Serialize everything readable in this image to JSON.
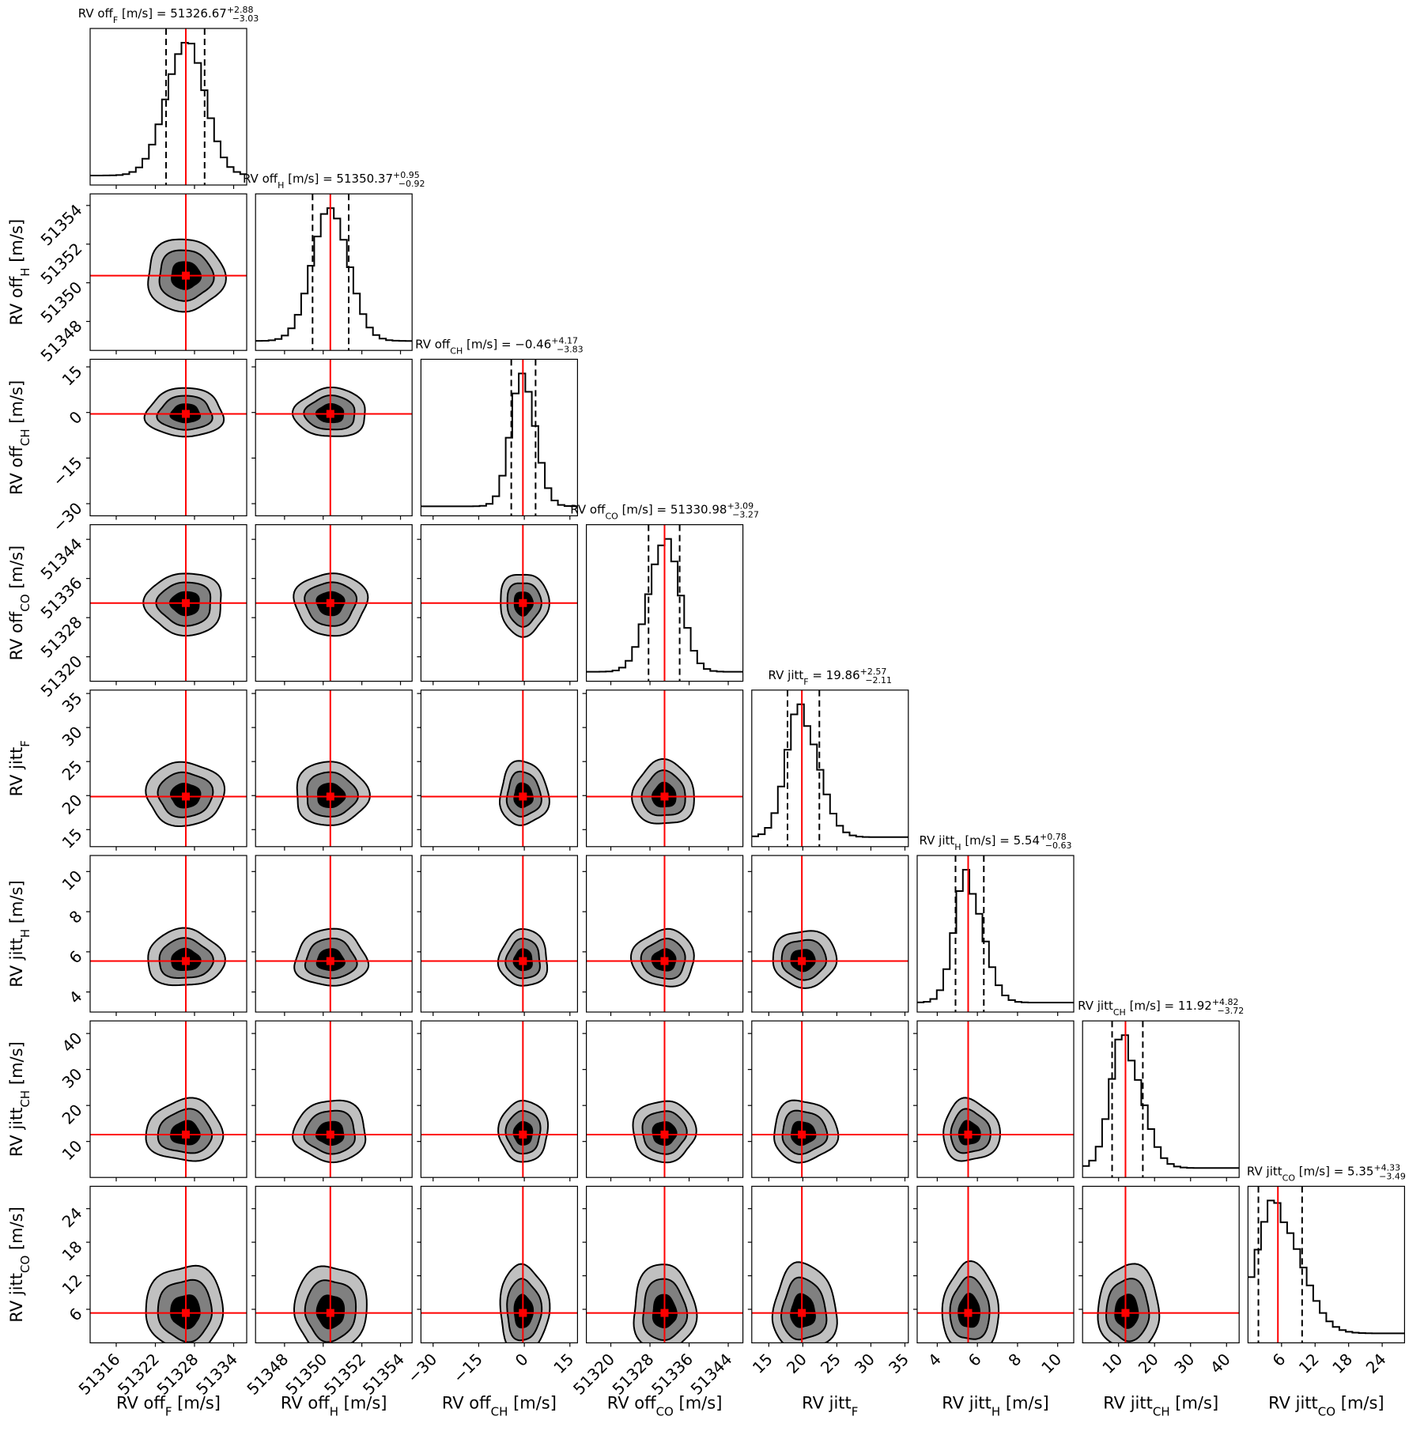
{
  "chart_data": {
    "type": "corner",
    "description_units": "posterior samples of RV offsets and jitters",
    "contour_colors": [
      "#c0c0c0",
      "#808080",
      "#000000"
    ],
    "truth_color": "#ff0000",
    "params": [
      {
        "key": "off_F",
        "label": {
          "pre": "RV off",
          "sub": "F",
          "post": " [m/s]"
        },
        "title": {
          "prefix": "RV off",
          "sub": "F",
          "mid": " [m/s] = ",
          "value": "51326.67",
          "upper": "+2.88",
          "lower": "−3.03"
        },
        "median": 51326.67,
        "err_plus": 2.88,
        "err_minus": 3.03,
        "range": [
          51312,
          51336
        ],
        "ticks": [
          51316,
          51322,
          51328,
          51334
        ],
        "tick_labels": [
          "51316",
          "51322",
          "51328",
          "51334"
        ]
      },
      {
        "key": "off_H",
        "label": {
          "pre": "RV off",
          "sub": "H",
          "post": " [m/s]"
        },
        "title": {
          "prefix": "RV off",
          "sub": "H",
          "mid": " [m/s] = ",
          "value": "51350.37",
          "upper": "+0.95",
          "lower": "−0.92"
        },
        "median": 51350.37,
        "err_plus": 0.95,
        "err_minus": 0.92,
        "range": [
          51346.5,
          51354.6
        ],
        "ticks": [
          51348,
          51350,
          51352,
          51354
        ],
        "tick_labels": [
          "51348",
          "51350",
          "51352",
          "51354"
        ]
      },
      {
        "key": "off_CH",
        "label": {
          "pre": "RV off",
          "sub": "CH",
          "post": " [m/s]"
        },
        "title": {
          "prefix": "RV off",
          "sub": "CH",
          "mid": " [m/s] = ",
          "value": "−0.46",
          "upper": "+4.17",
          "lower": "−3.83"
        },
        "median": -0.46,
        "err_plus": 4.17,
        "err_minus": 3.83,
        "range": [
          -34,
          17.5
        ],
        "ticks": [
          -30,
          -15,
          0,
          15
        ],
        "tick_labels": [
          "−30",
          "−15",
          "0",
          "15"
        ]
      },
      {
        "key": "off_CO",
        "label": {
          "pre": "RV off",
          "sub": "CO",
          "post": " [m/s]"
        },
        "title": {
          "prefix": "RV off",
          "sub": "CO",
          "mid": " [m/s] = ",
          "value": "51330.98",
          "upper": "+3.09",
          "lower": "−3.27"
        },
        "median": 51330.98,
        "err_plus": 3.09,
        "err_minus": 3.27,
        "range": [
          51315,
          51347
        ],
        "ticks": [
          51320,
          51328,
          51336,
          51344
        ],
        "tick_labels": [
          "51320",
          "51328",
          "51336",
          "51344"
        ]
      },
      {
        "key": "jitt_F",
        "label": {
          "pre": "RV jitt",
          "sub": "F",
          "post": ""
        },
        "title": {
          "prefix": "RV jitt",
          "sub": "F",
          "mid": " = ",
          "value": "19.86",
          "upper": "+2.57",
          "lower": "−2.11"
        },
        "median": 19.86,
        "err_plus": 2.57,
        "err_minus": 2.11,
        "range": [
          12.5,
          35.5
        ],
        "ticks": [
          15,
          20,
          25,
          30,
          35
        ],
        "tick_labels": [
          "15",
          "20",
          "25",
          "30",
          "35"
        ]
      },
      {
        "key": "jitt_H",
        "label": {
          "pre": "RV jitt",
          "sub": "H",
          "post": " [m/s]"
        },
        "title": {
          "prefix": "RV jitt",
          "sub": "H",
          "mid": " [m/s] = ",
          "value": "5.54",
          "upper": "+0.78",
          "lower": "−0.63"
        },
        "median": 5.54,
        "err_plus": 0.78,
        "err_minus": 0.63,
        "range": [
          3.0,
          10.8
        ],
        "ticks": [
          4,
          6,
          8,
          10
        ],
        "tick_labels": [
          "4",
          "6",
          "8",
          "10"
        ]
      },
      {
        "key": "jitt_CH",
        "label": {
          "pre": "RV jitt",
          "sub": "CH",
          "post": " [m/s]"
        },
        "title": {
          "prefix": "RV jitt",
          "sub": "CH",
          "mid": " [m/s] = ",
          "value": "11.92",
          "upper": "+4.82",
          "lower": "−3.72"
        },
        "median": 11.92,
        "err_plus": 4.82,
        "err_minus": 3.72,
        "range": [
          0,
          43.5
        ],
        "ticks": [
          10,
          20,
          30,
          40
        ],
        "tick_labels": [
          "10",
          "20",
          "30",
          "40"
        ]
      },
      {
        "key": "jitt_CO",
        "label": {
          "pre": "RV jitt",
          "sub": "CO",
          "post": " [m/s]"
        },
        "title": {
          "prefix": "RV jitt",
          "sub": "CO",
          "mid": " [m/s] = ",
          "value": "5.35",
          "upper": "+4.33",
          "lower": "−3.49"
        },
        "median": 5.35,
        "err_plus": 4.33,
        "err_minus": 3.49,
        "range": [
          0,
          28
        ],
        "ticks": [
          6,
          12,
          18,
          24
        ],
        "tick_labels": [
          "6",
          "12",
          "18",
          "24"
        ]
      }
    ]
  }
}
